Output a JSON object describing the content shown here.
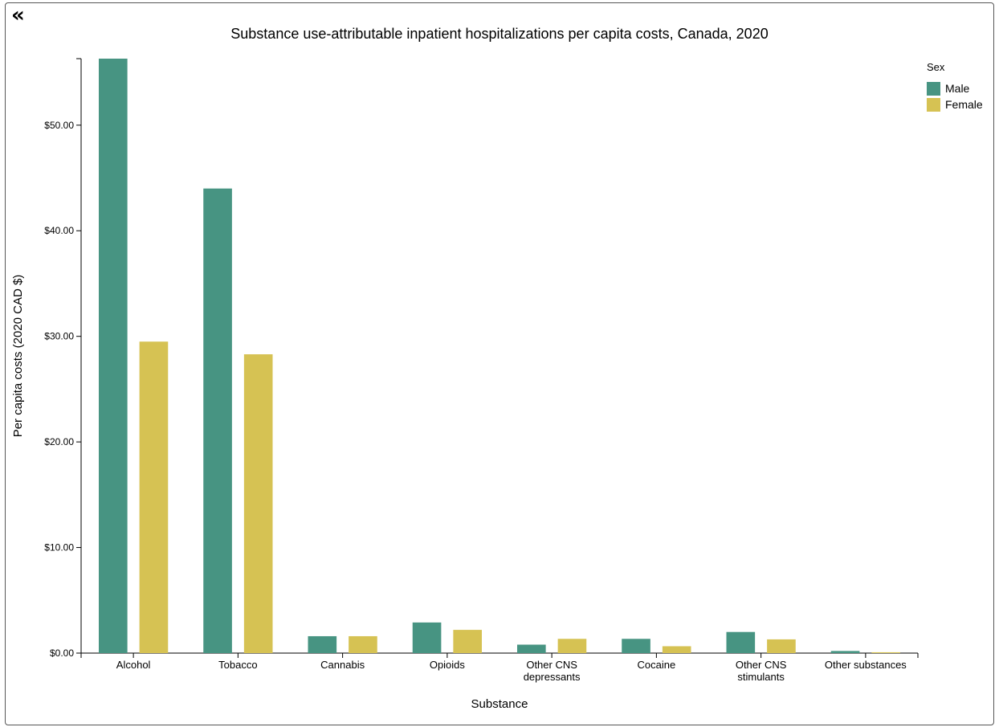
{
  "toolbar": {
    "collapse_glyph": "«",
    "collapse_icon": "double-chevron-left-icon"
  },
  "colors": {
    "male": "#479482",
    "female": "#d6c253",
    "axis": "#000000"
  },
  "chart_data": {
    "type": "bar",
    "title": "Substance use-attributable inpatient hospitalizations per capita costs, Canada, 2020",
    "xlabel": "Substance",
    "ylabel": "Per capita costs (2020 CAD $)",
    "categories": [
      [
        "Alcohol"
      ],
      [
        "Tobacco"
      ],
      [
        "Cannabis"
      ],
      [
        "Opioids"
      ],
      [
        "Other CNS",
        "depressants"
      ],
      [
        "Cocaine"
      ],
      [
        "Other CNS",
        "stimulants"
      ],
      [
        "Other substances"
      ]
    ],
    "series": [
      {
        "name": "Male",
        "values": [
          56.3,
          44.0,
          1.6,
          2.9,
          0.8,
          1.35,
          2.0,
          0.2
        ]
      },
      {
        "name": "Female",
        "values": [
          29.5,
          28.3,
          1.6,
          2.2,
          1.35,
          0.65,
          1.3,
          0.08
        ]
      }
    ],
    "ylim": [
      0,
      56.3
    ],
    "yticks": [
      0,
      10,
      20,
      30,
      40,
      50
    ],
    "ytick_labels": [
      "$0.00",
      "$10.00",
      "$20.00",
      "$30.00",
      "$40.00",
      "$50.00"
    ],
    "legend": {
      "title": "Sex",
      "position": "top-right"
    },
    "grid": false
  }
}
